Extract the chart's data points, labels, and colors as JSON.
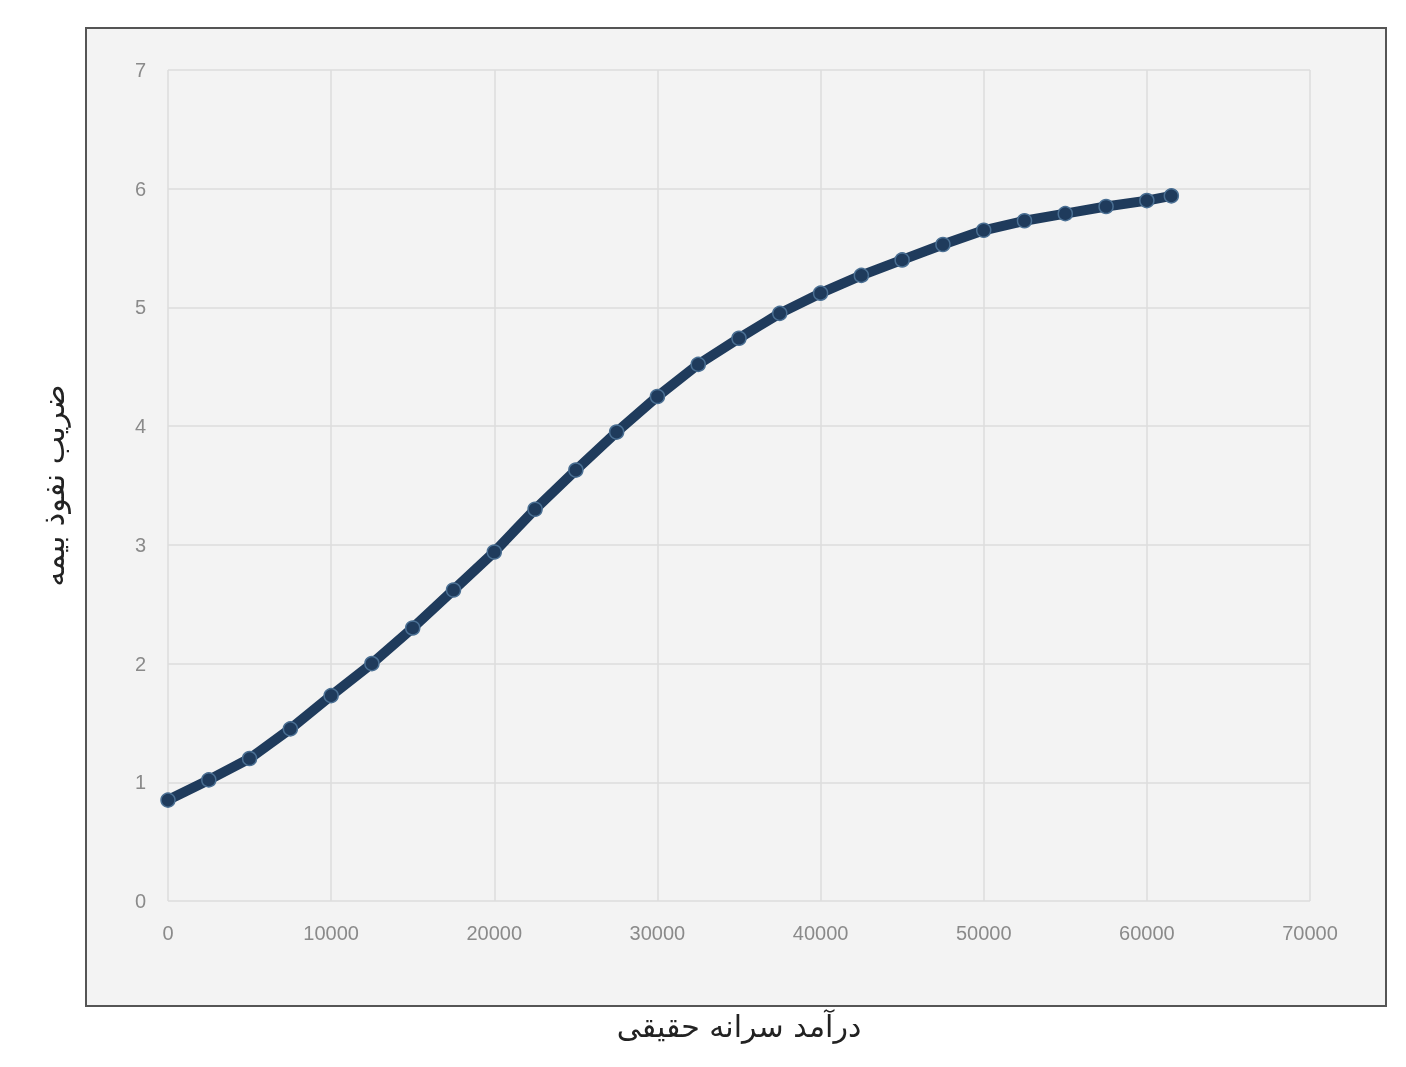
{
  "chart_data": {
    "type": "line",
    "xlabel": "درآمد سرانه حقیقی",
    "ylabel": "ضریب نفوذ بیمه",
    "marker": "circle",
    "grid": true,
    "xlim": [
      0,
      70000
    ],
    "xticks": [
      0,
      10000,
      20000,
      30000,
      40000,
      50000,
      60000,
      70000
    ],
    "ylim": [
      0,
      7
    ],
    "yticks": [
      0,
      1,
      2,
      3,
      4,
      5,
      6,
      7
    ],
    "series": [
      {
        "color": "#1f3b5c",
        "x": [
          0,
          2500,
          5000,
          7500,
          10000,
          12500,
          15000,
          17500,
          20000,
          22500,
          25000,
          27500,
          30000,
          32500,
          35000,
          37500,
          40000,
          42500,
          45000,
          47500,
          50000,
          52500,
          55000,
          57500,
          60000,
          61500
        ],
        "values": [
          0.85,
          1.02,
          1.2,
          1.45,
          1.73,
          2.0,
          2.3,
          2.62,
          2.94,
          3.3,
          3.63,
          3.95,
          4.25,
          4.52,
          4.74,
          4.95,
          5.12,
          5.27,
          5.4,
          5.53,
          5.65,
          5.73,
          5.79,
          5.85,
          5.9,
          5.94
        ]
      }
    ]
  }
}
